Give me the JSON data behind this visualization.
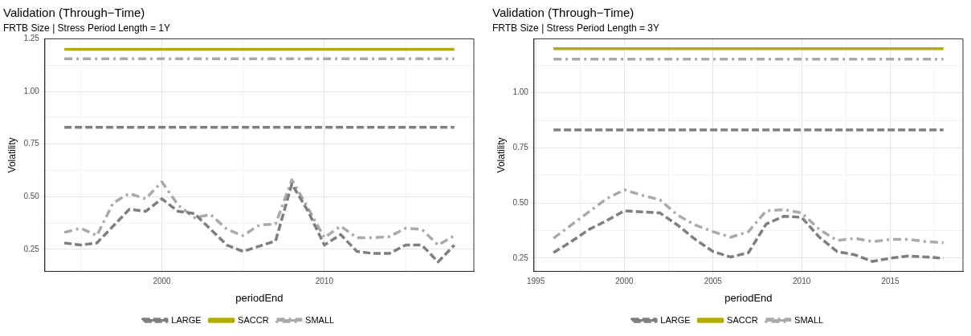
{
  "chart_data": [
    {
      "type": "line",
      "title": "Validation (Through−Time)",
      "subtitle": "FRTB Size | Stress Period Length = 1Y",
      "xlabel": "periodEnd",
      "ylabel": "Volatility",
      "x": [
        1994,
        1995,
        1996,
        1997,
        1998,
        1999,
        2000,
        2001,
        2002,
        2003,
        2004,
        2005,
        2006,
        2007,
        2008,
        2009,
        2010,
        2011,
        2012,
        2013,
        2014,
        2015,
        2016,
        2017,
        2018
      ],
      "xlim": [
        1992.8,
        2019.2
      ],
      "xticks": [
        {
          "value": 1995,
          "label": null
        },
        2000,
        {
          "value": 2005,
          "label": null
        },
        2010,
        {
          "value": 2015,
          "label": null
        }
      ],
      "ylim": [
        0.145,
        1.25
      ],
      "yticks": [
        0.25,
        {
          "value": 0.375,
          "label": null
        },
        {
          "value": 0.5,
          "label": "0.50"
        },
        {
          "value": 0.625,
          "label": null
        },
        0.75,
        {
          "value": 0.875,
          "label": null
        },
        {
          "value": 1.0,
          "label": "1.00"
        },
        {
          "value": 1.125,
          "label": null
        },
        1.25
      ],
      "grid": true,
      "legend": "bottom",
      "series": [
        {
          "name": "LARGE",
          "color": "#7f7f7f",
          "line_style": "dashed",
          "values": [
            0.28,
            0.27,
            0.28,
            0.36,
            0.44,
            0.43,
            0.49,
            0.43,
            0.42,
            0.345,
            0.27,
            0.24,
            0.265,
            0.29,
            0.56,
            0.43,
            0.27,
            0.32,
            0.24,
            0.23,
            0.23,
            0.27,
            0.27,
            0.19,
            0.27
          ]
        },
        {
          "name": "SACCR",
          "color": "#b2ae00",
          "line_style": "solid",
          "x": [
            1994,
            2018
          ],
          "values": [
            1.2,
            1.2
          ]
        },
        {
          "name": "SMALL",
          "color": "#aaaaaa",
          "line_style": "dashdot",
          "values": [
            0.33,
            0.35,
            0.315,
            0.47,
            0.515,
            0.49,
            0.57,
            0.46,
            0.4,
            0.415,
            0.345,
            0.315,
            0.365,
            0.37,
            0.58,
            0.445,
            0.305,
            0.36,
            0.305,
            0.305,
            0.31,
            0.35,
            0.345,
            0.27,
            0.315
          ]
        },
        {
          "color": "#7f7f7f",
          "line_style": "dashed",
          "x": [
            1994,
            2018
          ],
          "values": [
            0.83,
            0.83
          ]
        },
        {
          "color": "#aaaaaa",
          "line_style": "dashdot",
          "x": [
            1994,
            2018
          ],
          "values": [
            1.155,
            1.155
          ]
        }
      ]
    },
    {
      "type": "line",
      "title": "Validation (Through−Time)",
      "subtitle": "FRTB Size | Stress Period Length = 3Y",
      "xlabel": "periodEnd",
      "ylabel": "Volatility",
      "x": [
        1996,
        1997,
        1998,
        1999,
        2000,
        2001,
        2002,
        2003,
        2004,
        2005,
        2006,
        2007,
        2008,
        2009,
        2010,
        2011,
        2012,
        2013,
        2014,
        2015,
        2016,
        2017,
        2018
      ],
      "xlim": [
        1994.9,
        2019.1
      ],
      "xticks": [
        1995,
        {
          "value": 1997.5,
          "label": null
        },
        2000,
        {
          "value": 2002.5,
          "label": null
        },
        2005,
        {
          "value": 2007.5,
          "label": null
        },
        2010,
        {
          "value": 2012.5,
          "label": null
        },
        2015,
        {
          "value": 2017.5,
          "label": null
        }
      ],
      "ylim": [
        0.19,
        1.245
      ],
      "yticks": [
        0.25,
        {
          "value": 0.375,
          "label": null
        },
        {
          "value": 0.5,
          "label": "0.50"
        },
        {
          "value": 0.625,
          "label": null
        },
        0.75,
        {
          "value": 0.875,
          "label": null
        },
        {
          "value": 1.0,
          "label": "1.00"
        },
        {
          "value": 1.125,
          "label": null
        }
      ],
      "grid": true,
      "legend": "bottom",
      "series": [
        {
          "name": "LARGE",
          "color": "#7f7f7f",
          "line_style": "dashed",
          "values": [
            0.275,
            0.325,
            0.38,
            0.42,
            0.465,
            0.46,
            0.455,
            0.4,
            0.335,
            0.28,
            0.255,
            0.275,
            0.405,
            0.44,
            0.435,
            0.345,
            0.28,
            0.265,
            0.235,
            0.25,
            0.26,
            0.255,
            0.25
          ]
        },
        {
          "name": "SACCR",
          "color": "#b2ae00",
          "line_style": "solid",
          "x": [
            1996,
            2018
          ],
          "values": [
            1.2,
            1.2
          ]
        },
        {
          "name": "SMALL",
          "color": "#aaaaaa",
          "line_style": "dashdot",
          "values": [
            0.34,
            0.4,
            0.46,
            0.52,
            0.56,
            0.535,
            0.515,
            0.445,
            0.4,
            0.37,
            0.345,
            0.37,
            0.465,
            0.47,
            0.455,
            0.38,
            0.33,
            0.34,
            0.325,
            0.335,
            0.335,
            0.325,
            0.32
          ]
        },
        {
          "color": "#7f7f7f",
          "line_style": "dashed",
          "x": [
            1996,
            2018
          ],
          "values": [
            0.832,
            0.832
          ]
        },
        {
          "color": "#aaaaaa",
          "line_style": "dashdot",
          "x": [
            1996,
            2018
          ],
          "values": [
            1.153,
            1.153
          ]
        }
      ]
    }
  ]
}
